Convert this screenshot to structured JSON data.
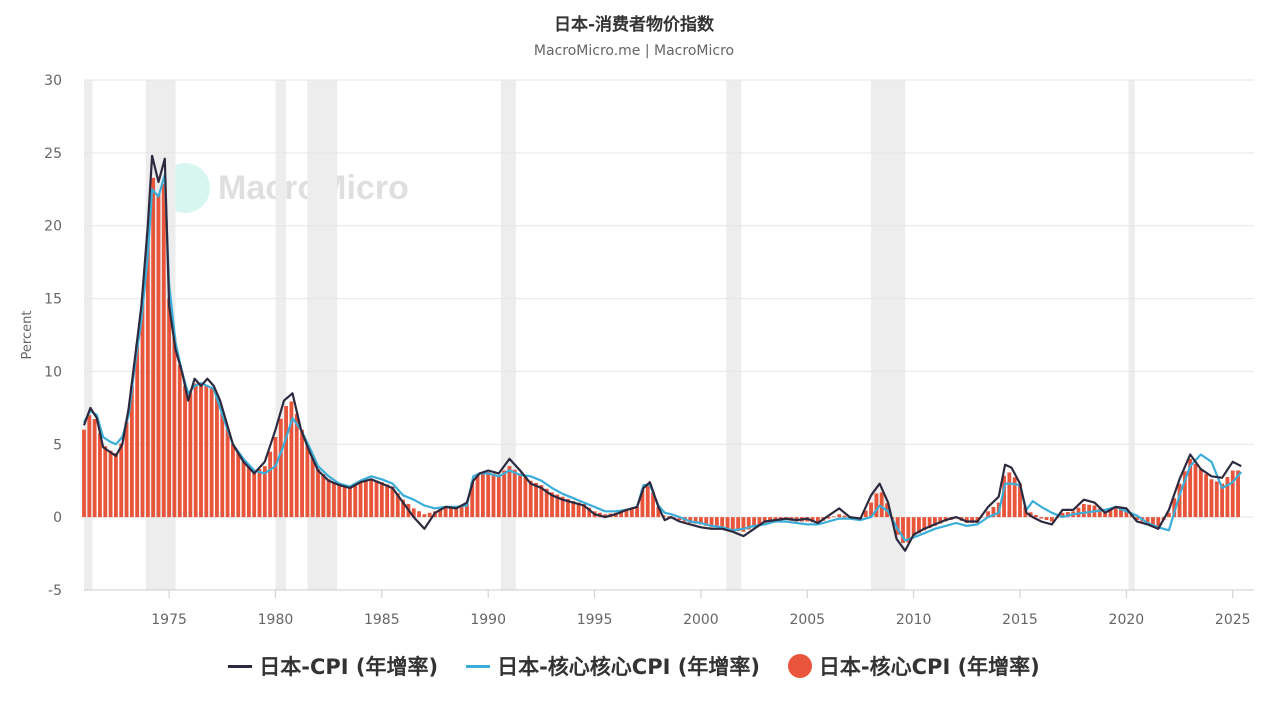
{
  "chart_data": {
    "type": "bar",
    "title": "日本-消费者物价指数",
    "subtitle": "MacroMicro.me | MacroMicro",
    "ylabel": "Percent",
    "xlabel": "",
    "ylim": [
      -5,
      30
    ],
    "xlim": [
      1971,
      2026
    ],
    "y_ticks": [
      -5,
      0,
      5,
      10,
      15,
      20,
      25,
      30
    ],
    "x_ticks": [
      1975,
      1980,
      1985,
      1990,
      1995,
      2000,
      2005,
      2010,
      2015,
      2020,
      2025
    ],
    "grid": "horizontal",
    "legend_position": "bottom",
    "recessions": [
      [
        1971.0,
        1971.4
      ],
      [
        1973.9,
        1975.3
      ],
      [
        1980.0,
        1980.5
      ],
      [
        1981.5,
        1982.9
      ],
      [
        1990.6,
        1991.3
      ],
      [
        2001.2,
        2001.9
      ],
      [
        2008.0,
        2009.6
      ],
      [
        2020.1,
        2020.4
      ]
    ],
    "series": [
      {
        "name": "日本-CPI (年增率)",
        "type": "line",
        "color": "#2d2a3f",
        "x": [
          1971.0,
          1971.3,
          1971.6,
          1971.9,
          1972.2,
          1972.5,
          1972.8,
          1973.1,
          1973.4,
          1973.7,
          1974.0,
          1974.2,
          1974.5,
          1974.8,
          1975.0,
          1975.3,
          1975.6,
          1975.9,
          1976.2,
          1976.5,
          1976.8,
          1977.1,
          1977.4,
          1977.7,
          1978.0,
          1978.5,
          1979.0,
          1979.5,
          1980.0,
          1980.4,
          1980.8,
          1981.2,
          1981.6,
          1982.0,
          1982.5,
          1983.0,
          1983.5,
          1984.0,
          1984.5,
          1985.0,
          1985.5,
          1986.0,
          1986.5,
          1987.0,
          1987.5,
          1988.0,
          1988.5,
          1989.0,
          1989.3,
          1989.6,
          1990.0,
          1990.5,
          1991.0,
          1991.5,
          1992.0,
          1992.5,
          1993.0,
          1993.5,
          1994.0,
          1994.5,
          1995.0,
          1995.5,
          1996.0,
          1996.5,
          1997.0,
          1997.3,
          1997.6,
          1998.0,
          1998.3,
          1998.6,
          1999.0,
          1999.5,
          2000.0,
          2000.5,
          2001.0,
          2001.5,
          2002.0,
          2002.5,
          2003.0,
          2003.5,
          2004.0,
          2004.5,
          2005.0,
          2005.5,
          2006.0,
          2006.5,
          2007.0,
          2007.5,
          2008.0,
          2008.4,
          2008.8,
          2009.2,
          2009.6,
          2010.0,
          2010.5,
          2011.0,
          2011.5,
          2012.0,
          2012.5,
          2013.0,
          2013.5,
          2014.0,
          2014.3,
          2014.6,
          2015.0,
          2015.3,
          2015.6,
          2016.0,
          2016.5,
          2017.0,
          2017.5,
          2018.0,
          2018.5,
          2019.0,
          2019.5,
          2020.0,
          2020.5,
          2021.0,
          2021.5,
          2022.0,
          2022.5,
          2023.0,
          2023.5,
          2024.0,
          2024.5,
          2025.0,
          2025.4
        ],
        "values": [
          6.3,
          7.5,
          6.8,
          4.8,
          4.5,
          4.2,
          5.0,
          7.5,
          11.0,
          14.5,
          20.0,
          24.8,
          23.0,
          24.6,
          14.5,
          11.5,
          10.0,
          8.0,
          9.5,
          9.0,
          9.5,
          9.0,
          8.0,
          6.5,
          5.0,
          3.8,
          3.0,
          3.8,
          6.0,
          8.0,
          8.5,
          6.0,
          4.5,
          3.2,
          2.5,
          2.2,
          2.0,
          2.4,
          2.6,
          2.3,
          2.0,
          1.0,
          0.0,
          -0.8,
          0.3,
          0.7,
          0.6,
          1.0,
          2.5,
          3.0,
          3.2,
          3.0,
          4.0,
          3.2,
          2.3,
          2.0,
          1.5,
          1.2,
          1.0,
          0.8,
          0.2,
          0.0,
          0.2,
          0.5,
          0.7,
          2.0,
          2.4,
          0.7,
          -0.2,
          0.0,
          -0.3,
          -0.5,
          -0.7,
          -0.8,
          -0.8,
          -1.0,
          -1.3,
          -0.8,
          -0.3,
          -0.2,
          -0.1,
          -0.2,
          -0.1,
          -0.4,
          0.1,
          0.6,
          0.0,
          -0.1,
          1.5,
          2.3,
          1.0,
          -1.5,
          -2.3,
          -1.2,
          -0.8,
          -0.5,
          -0.2,
          0.0,
          -0.3,
          -0.3,
          0.7,
          1.4,
          3.6,
          3.4,
          2.3,
          0.3,
          0.0,
          -0.3,
          -0.5,
          0.5,
          0.5,
          1.2,
          1.0,
          0.3,
          0.7,
          0.6,
          -0.3,
          -0.5,
          -0.8,
          0.5,
          2.6,
          4.3,
          3.3,
          2.8,
          2.7,
          3.8,
          3.5
        ]
      },
      {
        "name": "日本-核心核心CPI (年增率)",
        "type": "line",
        "color": "#3aaed8",
        "x": [
          1971.0,
          1971.3,
          1971.6,
          1971.9,
          1972.2,
          1972.5,
          1972.8,
          1973.1,
          1973.4,
          1973.7,
          1974.0,
          1974.2,
          1974.5,
          1974.8,
          1975.0,
          1975.3,
          1975.6,
          1975.9,
          1976.2,
          1976.5,
          1976.8,
          1977.1,
          1977.4,
          1977.7,
          1978.0,
          1978.5,
          1979.0,
          1979.5,
          1980.0,
          1980.4,
          1980.8,
          1981.2,
          1981.6,
          1982.0,
          1982.5,
          1983.0,
          1983.5,
          1984.0,
          1984.5,
          1985.0,
          1985.5,
          1986.0,
          1986.5,
          1987.0,
          1987.5,
          1988.0,
          1988.5,
          1989.0,
          1989.3,
          1989.6,
          1990.0,
          1990.5,
          1991.0,
          1991.5,
          1992.0,
          1992.5,
          1993.0,
          1993.5,
          1994.0,
          1994.5,
          1995.0,
          1995.5,
          1996.0,
          1996.5,
          1997.0,
          1997.3,
          1997.6,
          1998.0,
          1998.3,
          1998.6,
          1999.0,
          1999.5,
          2000.0,
          2000.5,
          2001.0,
          2001.5,
          2002.0,
          2002.5,
          2003.0,
          2003.5,
          2004.0,
          2004.5,
          2005.0,
          2005.5,
          2006.0,
          2006.5,
          2007.0,
          2007.5,
          2008.0,
          2008.4,
          2008.8,
          2009.2,
          2009.6,
          2010.0,
          2010.5,
          2011.0,
          2011.5,
          2012.0,
          2012.5,
          2013.0,
          2013.5,
          2014.0,
          2014.3,
          2014.6,
          2015.0,
          2015.3,
          2015.6,
          2016.0,
          2016.5,
          2017.0,
          2017.5,
          2018.0,
          2018.5,
          2019.0,
          2019.5,
          2020.0,
          2020.5,
          2021.0,
          2021.5,
          2022.0,
          2022.5,
          2023.0,
          2023.5,
          2024.0,
          2024.5,
          2025.0,
          2025.4
        ],
        "values": [
          6.5,
          7.3,
          7.0,
          5.5,
          5.2,
          5.0,
          5.5,
          7.0,
          10.5,
          13.5,
          18.0,
          22.5,
          22.0,
          23.5,
          16.0,
          12.0,
          10.0,
          8.5,
          9.0,
          9.2,
          9.0,
          8.8,
          7.5,
          6.2,
          5.0,
          4.0,
          3.2,
          3.0,
          3.5,
          5.0,
          6.8,
          6.0,
          4.8,
          3.5,
          2.8,
          2.3,
          2.1,
          2.5,
          2.8,
          2.6,
          2.3,
          1.5,
          1.2,
          0.8,
          0.6,
          0.7,
          0.7,
          0.8,
          2.8,
          3.0,
          3.0,
          2.8,
          3.2,
          2.9,
          2.8,
          2.5,
          2.0,
          1.6,
          1.3,
          1.0,
          0.7,
          0.4,
          0.4,
          0.5,
          0.7,
          2.2,
          2.2,
          0.8,
          0.3,
          0.2,
          0.0,
          -0.3,
          -0.4,
          -0.6,
          -0.7,
          -0.9,
          -0.8,
          -0.6,
          -0.5,
          -0.3,
          -0.3,
          -0.4,
          -0.5,
          -0.5,
          -0.3,
          -0.1,
          -0.1,
          -0.2,
          0.0,
          0.8,
          0.4,
          -0.7,
          -1.6,
          -1.4,
          -1.1,
          -0.8,
          -0.6,
          -0.4,
          -0.6,
          -0.5,
          0.0,
          0.3,
          2.3,
          2.3,
          2.2,
          0.5,
          1.1,
          0.7,
          0.3,
          0.0,
          0.2,
          0.3,
          0.4,
          0.5,
          0.7,
          0.4,
          0.1,
          -0.4,
          -0.7,
          -0.9,
          1.5,
          3.5,
          4.3,
          3.8,
          2.0,
          2.4,
          3.1
        ]
      },
      {
        "name": "日本-核心CPI (年增率)",
        "type": "bar",
        "color": "#e8553b",
        "x": [
          1971.0,
          1971.3,
          1971.6,
          1971.9,
          1972.2,
          1972.5,
          1972.8,
          1973.1,
          1973.4,
          1973.7,
          1974.0,
          1974.2,
          1974.5,
          1974.8,
          1975.0,
          1975.3,
          1975.6,
          1975.9,
          1976.2,
          1976.5,
          1976.8,
          1977.1,
          1977.4,
          1977.7,
          1978.0,
          1978.5,
          1979.0,
          1979.5,
          1980.0,
          1980.4,
          1980.8,
          1981.2,
          1981.6,
          1982.0,
          1982.5,
          1983.0,
          1983.5,
          1984.0,
          1984.5,
          1985.0,
          1985.5,
          1986.0,
          1986.5,
          1987.0,
          1987.5,
          1988.0,
          1988.5,
          1989.0,
          1989.3,
          1989.6,
          1990.0,
          1990.5,
          1991.0,
          1991.5,
          1992.0,
          1992.5,
          1993.0,
          1993.5,
          1994.0,
          1994.5,
          1995.0,
          1995.5,
          1996.0,
          1996.5,
          1997.0,
          1997.3,
          1997.6,
          1998.0,
          1998.3,
          1998.6,
          1999.0,
          1999.5,
          2000.0,
          2000.5,
          2001.0,
          2001.5,
          2002.0,
          2002.5,
          2003.0,
          2003.5,
          2004.0,
          2004.5,
          2005.0,
          2005.5,
          2006.0,
          2006.5,
          2007.0,
          2007.5,
          2008.0,
          2008.4,
          2008.8,
          2009.2,
          2009.6,
          2010.0,
          2010.5,
          2011.0,
          2011.5,
          2012.0,
          2012.5,
          2013.0,
          2013.5,
          2014.0,
          2014.3,
          2014.6,
          2015.0,
          2015.3,
          2015.6,
          2016.0,
          2016.5,
          2017.0,
          2017.5,
          2018.0,
          2018.5,
          2019.0,
          2019.5,
          2020.0,
          2020.5,
          2021.0,
          2021.5,
          2022.0,
          2022.5,
          2023.0,
          2023.5,
          2024.0,
          2024.5,
          2025.0,
          2025.4
        ],
        "values": [
          6.0,
          7.2,
          6.5,
          5.0,
          4.6,
          4.4,
          5.2,
          7.2,
          10.8,
          14.0,
          19.5,
          23.5,
          22.2,
          23.0,
          15.0,
          11.8,
          9.8,
          8.2,
          9.2,
          9.0,
          9.1,
          8.8,
          7.7,
          6.3,
          5.0,
          3.9,
          3.1,
          3.5,
          5.5,
          7.5,
          8.0,
          6.2,
          4.6,
          3.3,
          2.6,
          2.2,
          2.0,
          2.4,
          2.6,
          2.4,
          2.1,
          1.2,
          0.6,
          0.2,
          0.4,
          0.7,
          0.7,
          0.9,
          2.7,
          3.0,
          3.1,
          2.9,
          3.5,
          3.0,
          2.5,
          2.2,
          1.7,
          1.4,
          1.1,
          0.9,
          0.4,
          0.2,
          0.3,
          0.5,
          0.7,
          2.1,
          2.3,
          0.7,
          0.0,
          0.1,
          -0.2,
          -0.4,
          -0.5,
          -0.7,
          -0.7,
          -0.9,
          -1.0,
          -0.7,
          -0.4,
          -0.3,
          -0.2,
          -0.3,
          -0.3,
          -0.4,
          -0.1,
          0.2,
          0.0,
          -0.1,
          1.0,
          2.0,
          0.8,
          -1.1,
          -2.0,
          -1.3,
          -0.9,
          -0.6,
          -0.3,
          -0.1,
          -0.4,
          -0.4,
          0.4,
          1.0,
          3.2,
          3.0,
          2.3,
          0.4,
          0.3,
          -0.1,
          -0.3,
          0.3,
          0.4,
          0.9,
          0.8,
          0.4,
          0.7,
          0.5,
          -0.2,
          -0.4,
          -0.7,
          0.3,
          2.3,
          4.0,
          3.3,
          2.6,
          2.3,
          3.2,
          3.2
        ]
      }
    ]
  },
  "watermark": "MacroMicro"
}
